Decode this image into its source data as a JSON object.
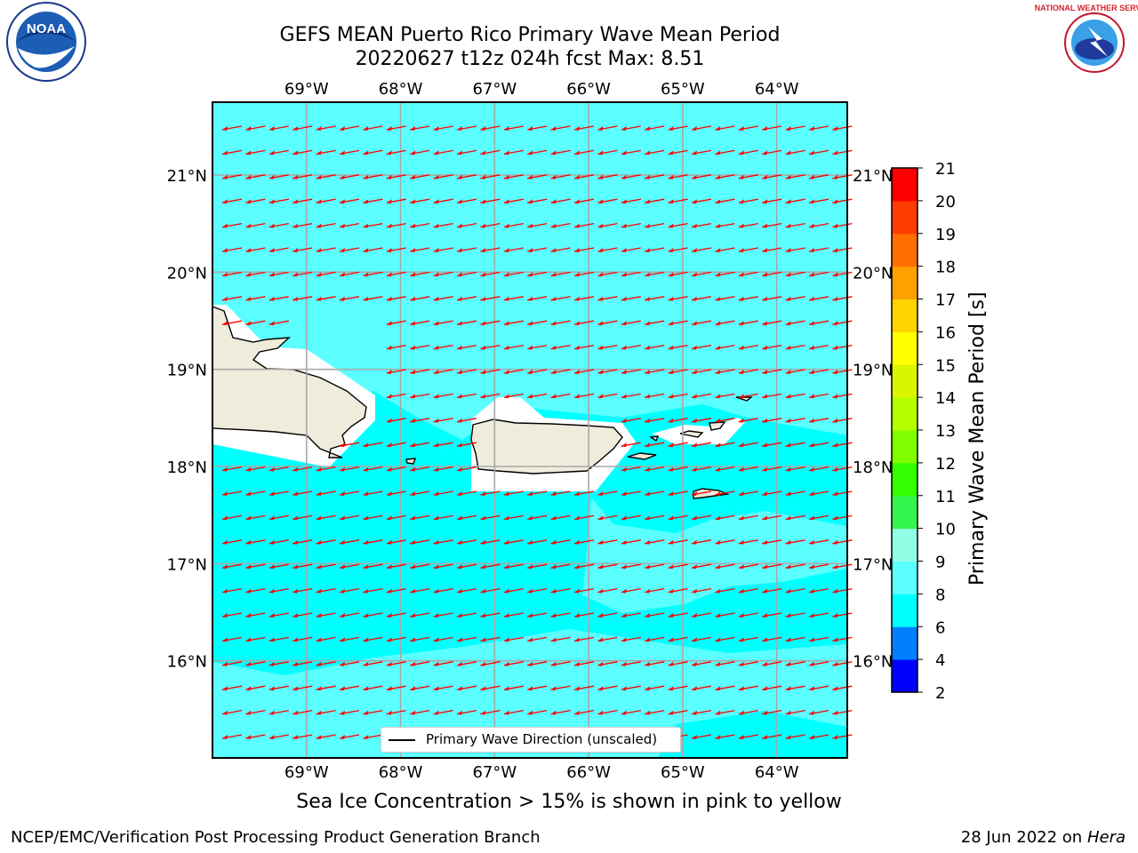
{
  "title": {
    "line1": "GEFS MEAN Puerto Rico Primary Wave Mean Period",
    "line2": "20220627 t12z 024h fcst   Max: 8.51"
  },
  "map": {
    "lon_labels": [
      "69°W",
      "68°W",
      "67°W",
      "66°W",
      "65°W",
      "64°W"
    ],
    "lat_labels": [
      "21°N",
      "20°N",
      "19°N",
      "18°N",
      "17°N",
      "16°N"
    ],
    "lon_range": [
      -70.0,
      -63.25
    ],
    "lat_range": [
      15.0,
      21.75
    ],
    "background_color": "#5bffff",
    "land_color": "#efecdc",
    "arrow_color": "#ff0000",
    "legend_label": "Primary Wave Direction (unscaled)"
  },
  "colorbar": {
    "title": "Primary Wave Mean Period [s]",
    "ticks": [
      "2",
      "4",
      "6",
      "8",
      "9",
      "10",
      "11",
      "12",
      "13",
      "14",
      "15",
      "16",
      "17",
      "18",
      "19",
      "20",
      "21"
    ],
    "colors": [
      "#0000ff",
      "#0080ff",
      "#00ffff",
      "#5bffff",
      "#91ffe6",
      "#33f54d",
      "#33ff00",
      "#80ff00",
      "#b3ff00",
      "#d9f500",
      "#ffff00",
      "#ffd300",
      "#ffa000",
      "#ff6e00",
      "#ff3c00",
      "#ff0000"
    ]
  },
  "note": "Sea Ice Concentration > 15% is shown in pink to yellow",
  "footer": {
    "left": "NCEP/EMC/Verification Post Processing Product Generation Branch",
    "right_date": "28 Jun 2022 on",
    "right_host": "Hera"
  },
  "logos": {
    "noaa": "NOAA",
    "nws": "NATIONAL WEATHER SERVICE"
  }
}
